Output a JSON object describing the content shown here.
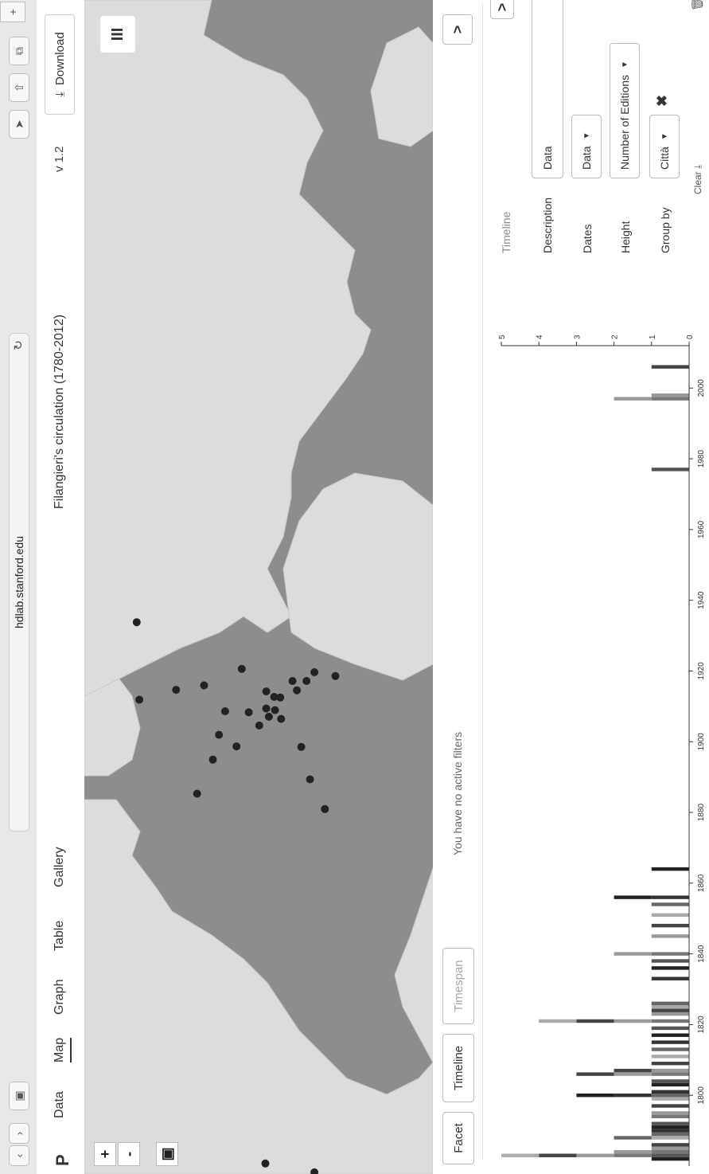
{
  "browser": {
    "url": "hdlab.stanford.edu"
  },
  "app": {
    "logo": "P",
    "tabs": [
      {
        "label": "Data"
      },
      {
        "label": "Map"
      },
      {
        "label": "Graph"
      },
      {
        "label": "Table"
      },
      {
        "label": "Gallery"
      }
    ],
    "active_tab": "Map",
    "project_title": "Filangieri's circulation (1780-2012)",
    "version": "v 1.2",
    "download_label": "Download"
  },
  "map": {
    "zoom_in": "+",
    "zoom_out": "-",
    "layers_icon": "III",
    "points": [
      {
        "lat": 45.4,
        "lon": 9.2
      },
      {
        "lat": 48.8,
        "lon": 2.3
      },
      {
        "lat": 51.5,
        "lon": -0.1
      },
      {
        "lat": 52.5,
        "lon": 13.4
      },
      {
        "lat": 40.8,
        "lon": 14.2
      },
      {
        "lat": 41.9,
        "lon": 12.5
      },
      {
        "lat": 43.8,
        "lon": 11.2
      },
      {
        "lat": 45.1,
        "lon": 7.7
      },
      {
        "lat": 45.4,
        "lon": 12.3
      },
      {
        "lat": 46.2,
        "lon": 6.1
      },
      {
        "lat": 50.8,
        "lon": 4.4
      },
      {
        "lat": 48.2,
        "lon": 16.4
      },
      {
        "lat": 40.4,
        "lon": -3.7
      },
      {
        "lat": 38.7,
        "lon": -9.1
      },
      {
        "lat": 59.9,
        "lon": 10.8
      },
      {
        "lat": 55.7,
        "lon": 12.6
      },
      {
        "lat": 41.4,
        "lon": 2.2
      },
      {
        "lat": 47.4,
        "lon": 8.5
      },
      {
        "lat": 44.5,
        "lon": 11.3
      },
      {
        "lat": 43.7,
        "lon": 7.3
      },
      {
        "lat": 50.1,
        "lon": 8.7
      },
      {
        "lat": 53.3,
        "lon": -6.3
      },
      {
        "lat": 37.5,
        "lon": 15.1
      },
      {
        "lat": 39.9,
        "lon": 15.8
      },
      {
        "lat": 42.4,
        "lon": 14.2
      },
      {
        "lat": 44.4,
        "lon": 8.9
      },
      {
        "lat": 45.5,
        "lon": -73.6
      },
      {
        "lat": 39.9,
        "lon": -75.2
      },
      {
        "lat": -34.6,
        "lon": -58.4
      },
      {
        "lat": 60.2,
        "lon": 24.9
      }
    ]
  },
  "filters": {
    "facet_label": "Facet",
    "timeline_label": "Timeline",
    "timespan_label": "Timespan",
    "no_filters_text": "You have no active filters",
    "expand_icon": ">"
  },
  "timeline": {
    "panel_title": "Timeline",
    "description_label": "Description",
    "description_value": "Data",
    "dates_label": "Dates",
    "dates_value": "Data",
    "height_label": "Height",
    "height_value": "Number of Editions",
    "groupby_label": "Group by",
    "groupby_value": "Città",
    "clear_label": "Clear",
    "expand_icon": ">"
  },
  "chart_data": {
    "type": "bar",
    "xlabel": "",
    "ylabel": "",
    "x_ticks": [
      1800,
      1820,
      1840,
      1860,
      1880,
      1900,
      1920,
      1940,
      1960,
      1980,
      2000
    ],
    "y_ticks": [
      0,
      1,
      2,
      3,
      4,
      5
    ],
    "xlim": [
      1780,
      2012
    ],
    "ylim": [
      0,
      5
    ],
    "bars": [
      {
        "year": 1782,
        "value": 1
      },
      {
        "year": 1783,
        "value": 5
      },
      {
        "year": 1784,
        "value": 2
      },
      {
        "year": 1785,
        "value": 1
      },
      {
        "year": 1786,
        "value": 1
      },
      {
        "year": 1788,
        "value": 2
      },
      {
        "year": 1789,
        "value": 1
      },
      {
        "year": 1790,
        "value": 1
      },
      {
        "year": 1791,
        "value": 1
      },
      {
        "year": 1792,
        "value": 1
      },
      {
        "year": 1794,
        "value": 1
      },
      {
        "year": 1795,
        "value": 1
      },
      {
        "year": 1797,
        "value": 1
      },
      {
        "year": 1799,
        "value": 1
      },
      {
        "year": 1800,
        "value": 3
      },
      {
        "year": 1801,
        "value": 1
      },
      {
        "year": 1803,
        "value": 1
      },
      {
        "year": 1804,
        "value": 1
      },
      {
        "year": 1806,
        "value": 3
      },
      {
        "year": 1807,
        "value": 2
      },
      {
        "year": 1809,
        "value": 1
      },
      {
        "year": 1811,
        "value": 1
      },
      {
        "year": 1813,
        "value": 1
      },
      {
        "year": 1815,
        "value": 1
      },
      {
        "year": 1817,
        "value": 1
      },
      {
        "year": 1819,
        "value": 1
      },
      {
        "year": 1821,
        "value": 4
      },
      {
        "year": 1823,
        "value": 1
      },
      {
        "year": 1824,
        "value": 1
      },
      {
        "year": 1825,
        "value": 1
      },
      {
        "year": 1826,
        "value": 1
      },
      {
        "year": 1833,
        "value": 1
      },
      {
        "year": 1836,
        "value": 1
      },
      {
        "year": 1838,
        "value": 1
      },
      {
        "year": 1840,
        "value": 2
      },
      {
        "year": 1845,
        "value": 1
      },
      {
        "year": 1848,
        "value": 1
      },
      {
        "year": 1851,
        "value": 1
      },
      {
        "year": 1854,
        "value": 1
      },
      {
        "year": 1856,
        "value": 2
      },
      {
        "year": 1864,
        "value": 1
      },
      {
        "year": 1977,
        "value": 1
      },
      {
        "year": 1997,
        "value": 2
      },
      {
        "year": 1998,
        "value": 1
      },
      {
        "year": 2006,
        "value": 1
      }
    ]
  }
}
